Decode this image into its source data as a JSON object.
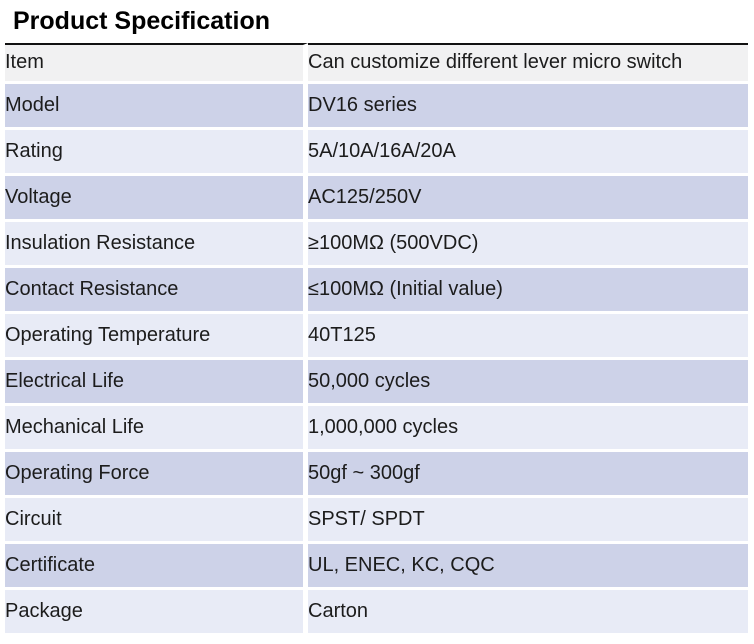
{
  "page_title": "Product Specification",
  "table": {
    "rows": [
      {
        "label": "Item",
        "value": "Can customize different lever micro switch"
      },
      {
        "label": "Model",
        "value": "DV16 series"
      },
      {
        "label": "Rating",
        "value": "5A/10A/16A/20A"
      },
      {
        "label": "Voltage",
        "value": "AC125/250V"
      },
      {
        "label": "Insulation Resistance",
        "value": "≥100MΩ (500VDC)"
      },
      {
        "label": "Contact Resistance",
        "value": "≤100MΩ (Initial value)"
      },
      {
        "label": "Operating Temperature",
        "value": "40T125"
      },
      {
        "label": "Electrical Life",
        "value": "50,000 cycles"
      },
      {
        "label": "Mechanical Life",
        "value": "1,000,000 cycles"
      },
      {
        "label": "Operating Force",
        "value": "50gf ~ 300gf"
      },
      {
        "label": "Circuit",
        "value": "SPST/ SPDT"
      },
      {
        "label": "Certificate",
        "value": "UL, ENEC, KC, CQC"
      },
      {
        "label": "Package",
        "value": "Carton"
      }
    ]
  },
  "colors": {
    "row_gray": "#f1f1f2",
    "row_purple": "#cdd2e8",
    "row_light": "#e8ebf6",
    "rule": "#111111",
    "text": "#1c1c1c"
  }
}
